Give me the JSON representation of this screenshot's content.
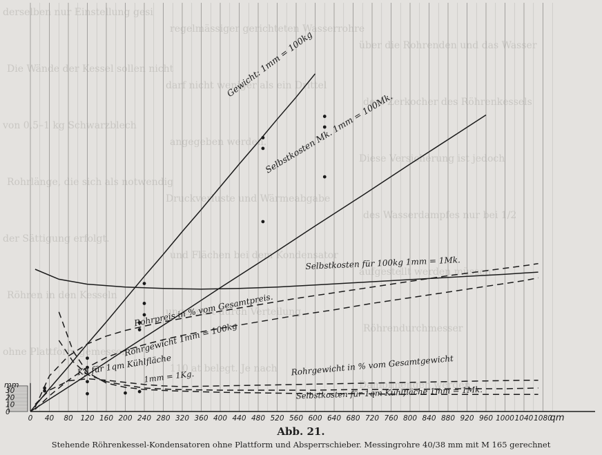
{
  "figure_label": "Abb. 21.",
  "caption": "Stehende Röhrenkessel-Kondensatoren ohne Plattform und Absperrschieber.  Messingrohre 40/38 mm mit M 165 gerechnet",
  "chart_data": {
    "type": "line",
    "title": "",
    "xlabel": "qm",
    "ylabel": "mm",
    "xlim": [
      0,
      1120
    ],
    "x_ticks": [
      0,
      40,
      80,
      120,
      160,
      200,
      240,
      280,
      320,
      360,
      400,
      440,
      480,
      520,
      560,
      600,
      640,
      680,
      720,
      760,
      800,
      840,
      880,
      920,
      960,
      1000,
      1040,
      1080
    ],
    "y_ticks": [
      0,
      10,
      20,
      30
    ],
    "series": [
      {
        "name": "Gewicht: 1mm = 100kg",
        "style": "solid",
        "x": [
          0,
          40,
          80,
          120,
          160,
          200,
          240,
          280,
          320,
          360,
          400,
          440,
          480,
          520,
          560,
          600
        ],
        "y": [
          0,
          32,
          63,
          95,
          126,
          158,
          190,
          221,
          253,
          284,
          316,
          348,
          379,
          411,
          442,
          475
        ]
      },
      {
        "name": "Selbstkosten Mk. 1mm = 100Mk.",
        "style": "solid",
        "x": [
          0,
          100,
          200,
          300,
          400,
          500,
          600,
          700,
          800,
          900,
          960
        ],
        "y": [
          0,
          43,
          87,
          130,
          174,
          217,
          261,
          304,
          348,
          391,
          417
        ]
      },
      {
        "name": "Selbstkosten für 100kg 1mm = 1Mk.",
        "style": "solid",
        "x": [
          10,
          60,
          120,
          200,
          280,
          360,
          440,
          520,
          600,
          680,
          760,
          840,
          920,
          1000,
          1070
        ],
        "y": [
          200,
          186,
          179,
          175,
          173,
          172,
          173,
          175,
          178,
          181,
          184,
          187,
          190,
          193,
          196
        ]
      },
      {
        "name": "Rohrpreis in % vom Gesamtpreis.",
        "style": "dashed",
        "x": [
          10,
          40,
          80,
          120,
          160,
          200,
          240,
          280,
          320,
          360,
          400,
          480,
          560,
          640,
          720,
          800,
          880,
          960,
          1040,
          1070
        ],
        "y": [
          6,
          50,
          78,
          95,
          106,
          114,
          120,
          126,
          131,
          136,
          141,
          150,
          159,
          167,
          175,
          183,
          191,
          198,
          205,
          208
        ]
      },
      {
        "name": "Rohrgewicht 1mm = 100kg",
        "style": "dashed",
        "x": [
          10,
          40,
          80,
          120,
          160,
          200,
          240,
          280,
          320,
          360,
          400,
          480,
          560,
          640,
          720,
          800,
          880,
          960,
          1040,
          1070
        ],
        "y": [
          3,
          22,
          44,
          62,
          76,
          86,
          94,
          101,
          107,
          112,
          117,
          126,
          135,
          143,
          152,
          160,
          168,
          176,
          184,
          188
        ]
      },
      {
        "name": "Kg für 1qm Kühlfläche 1mm = 1Kg.",
        "style": "dashed",
        "x": [
          60,
          90,
          120,
          160,
          200,
          240,
          300,
          400,
          500,
          600,
          700,
          800,
          900,
          1000,
          1070
        ],
        "y": [
          100,
          70,
          52,
          42,
          37,
          33,
          31,
          30,
          30,
          30,
          31,
          31,
          32,
          32,
          33
        ]
      },
      {
        "name": "Rohrgewicht in % vom Gesamtgewicht",
        "style": "dashed",
        "x": [
          10,
          40,
          80,
          120,
          160,
          200,
          240,
          280,
          320,
          400,
          480,
          560,
          640,
          720,
          800,
          880,
          960,
          1040,
          1070
        ],
        "y": [
          10,
          30,
          43,
          46,
          44,
          41,
          38,
          36,
          35,
          36,
          37,
          38,
          39,
          40,
          41,
          42,
          43,
          44,
          44
        ]
      },
      {
        "name": "Selbstkosten für 1qm Kühlfläche 1mm = 1Mk.",
        "style": "dashed",
        "x": [
          60,
          90,
          120,
          160,
          200,
          240,
          300,
          400,
          500,
          600,
          700,
          800,
          900,
          1000,
          1070
        ],
        "y": [
          140,
          85,
          55,
          40,
          34,
          31,
          29,
          27,
          26,
          25,
          25,
          24,
          24,
          24,
          24
        ]
      }
    ],
    "points": [
      {
        "x": 30,
        "y": 33
      },
      {
        "x": 30,
        "y": 29
      },
      {
        "x": 120,
        "y": 75
      },
      {
        "x": 120,
        "y": 62
      },
      {
        "x": 120,
        "y": 42
      },
      {
        "x": 120,
        "y": 25
      },
      {
        "x": 230,
        "y": 28
      },
      {
        "x": 230,
        "y": 115
      },
      {
        "x": 230,
        "y": 125
      },
      {
        "x": 240,
        "y": 136
      },
      {
        "x": 240,
        "y": 152
      },
      {
        "x": 240,
        "y": 180
      },
      {
        "x": 490,
        "y": 267
      },
      {
        "x": 490,
        "y": 370
      },
      {
        "x": 490,
        "y": 385
      },
      {
        "x": 620,
        "y": 330
      },
      {
        "x": 620,
        "y": 400
      },
      {
        "x": 620,
        "y": 415
      },
      {
        "x": 200,
        "y": 26
      }
    ],
    "annotations": [
      "Gewicht: 1mm = 100kg",
      "Selbstkosten Mk.   1mm = 100Mk.",
      "Selbstkosten für 100kg   1mm = 1Mk.",
      "Rohrpreis in % vom Gesamtpreis.",
      "Rohrgewicht  1mm = 100kg",
      "Kg für 1qm Kühlfläche",
      "1mm = 1Kg.",
      "Rohrgewicht in % vom Gesamtgewicht",
      "Selbstkosten für 1qm Kühlfläche   1mm = 1Mk."
    ],
    "grid": true,
    "legend": "none"
  },
  "background_text": [
    "derselben nur Einstellung gesi",
    "regelmässiger gerichteten Wasserrohre",
    "über die Rohrenden und das Wasser",
    "Die Wände der Kessel sollen nicht",
    "darf nicht weniger als ein Drittel",
    "dem Zerkocher des Röhrenkessels",
    "von 0,5–1 kg Schwarzblech",
    "angegeben werden.",
    "Diese Versicherung ist jedoch",
    "Rohrlänge, die sich als notwendig",
    "Druckverluste und Wärmeabgabe",
    "des Wasserdampfes nur bei 1/2",
    "der Sättigung erfolgt.",
    "und Flächen bei dem Kondensator",
    "aufgestellt werden müssen",
    "Röhren in den Kesseln",
    "ungeleitet durch Verteilung",
    "Röhrendurchmesser",
    "ohne Plattform gemessen",
    "110 at belegt. Je nach",
    "Dampfmengen werden"
  ]
}
